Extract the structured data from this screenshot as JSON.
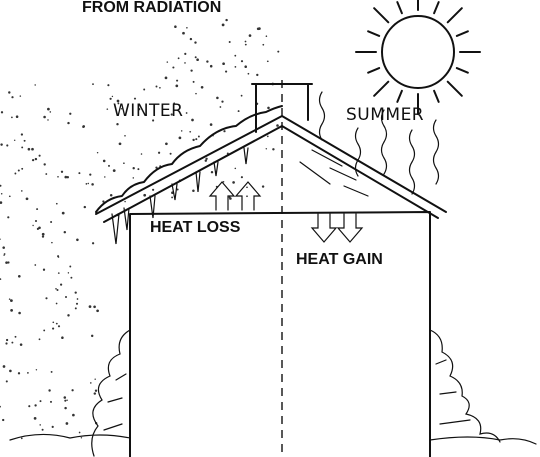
{
  "header": {
    "title": "FROM RADIATION"
  },
  "labels": {
    "winter": "WINTER",
    "summer": "SUMMER",
    "heat_loss": "HEAT LOSS",
    "heat_gain": "HEAT GAIN"
  }
}
